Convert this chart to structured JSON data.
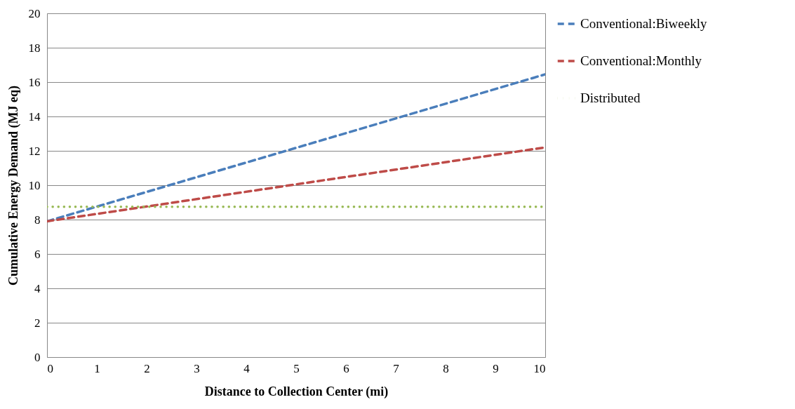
{
  "chart_data": {
    "type": "line",
    "xlabel": "Distance to Collection Center (mi)",
    "ylabel": "Cumulative Energy Demand (MJ eq)",
    "x": [
      0,
      10
    ],
    "series": [
      {
        "name": "Conventional:Biweekly",
        "color": "#4a7ebb",
        "values": [
          7.9,
          16.45
        ],
        "line_style": "dashed"
      },
      {
        "name": "Conventional:Monthly",
        "color": "#be4b48",
        "values": [
          7.9,
          12.2
        ],
        "line_style": "dashed"
      },
      {
        "name": "Distributed",
        "color": "#98b954",
        "values": [
          8.75,
          8.75
        ],
        "line_style": "dotted"
      }
    ],
    "xlim": [
      0,
      10
    ],
    "xticks": [
      0,
      1,
      2,
      3,
      4,
      5,
      6,
      7,
      8,
      9,
      10
    ],
    "ylim": [
      0,
      20
    ],
    "yticks": [
      0,
      2,
      4,
      6,
      8,
      10,
      12,
      14,
      16,
      18,
      20
    ],
    "grid": "y",
    "legend": "right",
    "marker": "none"
  }
}
